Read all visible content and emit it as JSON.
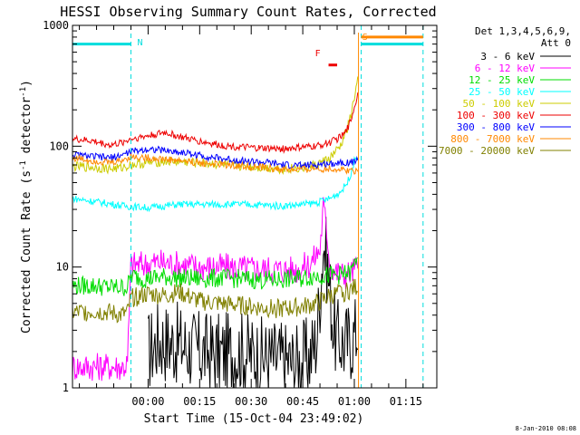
{
  "chart_data": {
    "type": "line",
    "title": "HESSI Observing Summary Count Rates, Corrected",
    "xlabel": "Start Time (15-Oct-04 23:49:02)",
    "ylabel": "Corrected Count Rate (s⁻¹ detector⁻¹)",
    "ylabel_parts": {
      "main": "Corrected Count Rate (s",
      "exp1": "-1",
      "mid": " detector",
      "exp2": "-1",
      "end": ")"
    },
    "x_unit": "minutes since 23:49:02",
    "xlim": [
      -11,
      95
    ],
    "ylim": [
      1,
      1000
    ],
    "y_scale": "log",
    "x_ticks": [
      {
        "value": 11,
        "label": "00:00"
      },
      {
        "value": 26,
        "label": "00:15"
      },
      {
        "value": 41,
        "label": "00:30"
      },
      {
        "value": 56,
        "label": "00:45"
      },
      {
        "value": 71,
        "label": "01:00"
      },
      {
        "value": 86,
        "label": "01:15"
      }
    ],
    "y_ticks": [
      {
        "value": 1,
        "label": "1"
      },
      {
        "value": 10,
        "label": "10"
      },
      {
        "value": 100,
        "label": "100"
      },
      {
        "value": 1000,
        "label": "1000"
      }
    ],
    "legend": {
      "position": "right",
      "header_lines": [
        "Det 1,3,4,5,6,9,",
        "Att 0"
      ],
      "entries": [
        {
          "label": "3 - 6 keV",
          "color": "#000000"
        },
        {
          "label": "6 - 12 keV",
          "color": "#ff00ff"
        },
        {
          "label": "12 - 25 keV",
          "color": "#00dd00"
        },
        {
          "label": "25 - 50 keV",
          "color": "#00ffff"
        },
        {
          "label": "50 - 100 keV",
          "color": "#cccc00"
        },
        {
          "label": "100 - 300 keV",
          "color": "#ee0000"
        },
        {
          "label": "300 - 800 keV",
          "color": "#0000ff"
        },
        {
          "label": "800 - 7000 keV",
          "color": "#ff8800"
        },
        {
          "label": "7000 - 20000 keV",
          "color": "#808000"
        }
      ]
    },
    "annotations": [
      {
        "label": "N",
        "x": 6,
        "color": "#00dddd"
      },
      {
        "label": "S",
        "x": 72,
        "color": "#ff8800"
      },
      {
        "label": "F",
        "x": 63,
        "color": "#ee0000"
      }
    ],
    "night_intervals": [
      [
        -11,
        6
      ],
      [
        73,
        91
      ]
    ],
    "night_level": 700,
    "saa_intervals": [
      [
        73,
        91
      ]
    ],
    "saa_level": 800,
    "flare_intervals": [
      [
        63.5,
        66
      ]
    ],
    "flare_level": 470,
    "series": [
      {
        "name": "3 - 6 keV",
        "color": "#000000",
        "x": [
          11,
          14,
          20,
          26,
          32,
          38,
          44,
          50,
          54,
          58,
          60,
          61,
          62,
          63,
          64,
          65,
          66,
          67,
          68,
          70,
          71,
          72
        ],
        "y": [
          2.0,
          2.5,
          2.3,
          2.0,
          1.9,
          2.0,
          1.8,
          1.7,
          1.6,
          1.8,
          2.5,
          6,
          16,
          11,
          6,
          3,
          2.5,
          2.5,
          2.3,
          2.5,
          2.7,
          3.0
        ]
      },
      {
        "name": "6 - 12 keV",
        "color": "#ff00ff",
        "x": [
          -11,
          0,
          2,
          4,
          5,
          6,
          10,
          14,
          20,
          26,
          32,
          38,
          44,
          50,
          54,
          58,
          61,
          62,
          63,
          64,
          66,
          68,
          70,
          71,
          72
        ],
        "y": [
          1.5,
          1.5,
          1.5,
          1.5,
          1.6,
          10.5,
          10.5,
          11.0,
          10.5,
          10.0,
          10.0,
          9.8,
          9.6,
          9.5,
          9.5,
          10.5,
          14,
          32,
          20,
          10,
          9,
          8.5,
          9.0,
          9.5,
          10.0
        ]
      },
      {
        "name": "12 - 25 keV",
        "color": "#00dd00",
        "x": [
          -11,
          -5,
          0,
          3,
          5,
          6,
          10,
          16,
          20,
          26,
          32,
          38,
          44,
          50,
          56,
          60,
          63,
          66,
          68,
          70,
          71,
          72
        ],
        "y": [
          7.0,
          7.0,
          6.8,
          6.8,
          6.8,
          8.5,
          8.0,
          8.3,
          8.1,
          8.0,
          8.1,
          8.0,
          7.8,
          7.9,
          8.1,
          8.5,
          8.5,
          8.6,
          8.7,
          9.0,
          10.5,
          13.0
        ]
      },
      {
        "name": "25 - 50 keV",
        "color": "#00ffff",
        "x": [
          -11,
          -2,
          4,
          11,
          20,
          30,
          40,
          50,
          56,
          60,
          64,
          67,
          69,
          70,
          71,
          72
        ],
        "y": [
          37,
          34,
          32,
          31,
          33,
          33,
          33,
          32,
          33,
          34,
          37,
          42,
          50,
          60,
          75,
          85
        ]
      },
      {
        "name": "50 - 100 keV",
        "color": "#cccc00",
        "x": [
          -11,
          -5,
          0,
          3,
          6,
          11,
          16,
          22,
          28,
          34,
          40,
          46,
          50,
          56,
          60,
          64,
          67,
          69,
          70,
          71,
          72
        ],
        "y": [
          68,
          67,
          65,
          66,
          70,
          73,
          75,
          74,
          72,
          70,
          68,
          66,
          65,
          66,
          70,
          80,
          100,
          140,
          180,
          250,
          350
        ]
      },
      {
        "name": "100 - 300 keV",
        "color": "#ee0000",
        "x": [
          -11,
          -5,
          0,
          3,
          6,
          11,
          16,
          21,
          26,
          32,
          38,
          44,
          50,
          56,
          60,
          64,
          66,
          68,
          69,
          70,
          71,
          72
        ],
        "y": [
          115,
          110,
          102,
          106,
          115,
          122,
          130,
          118,
          110,
          102,
          98,
          96,
          95,
          98,
          100,
          108,
          115,
          125,
          140,
          165,
          210,
          270
        ]
      },
      {
        "name": "300 - 800 keV",
        "color": "#0000ff",
        "x": [
          -11,
          -5,
          0,
          3,
          6,
          11,
          16,
          22,
          28,
          34,
          40,
          46,
          50,
          56,
          60,
          64,
          68,
          70,
          71,
          72
        ],
        "y": [
          85,
          82,
          80,
          84,
          90,
          95,
          92,
          88,
          82,
          78,
          75,
          73,
          70,
          69,
          70,
          72,
          74,
          73,
          75,
          76
        ]
      },
      {
        "name": "800 - 7000 keV",
        "color": "#ff8800",
        "x": [
          -11,
          -5,
          0,
          3,
          6,
          11,
          16,
          22,
          28,
          34,
          40,
          46,
          50,
          56,
          60,
          64,
          68,
          70,
          71,
          72
        ],
        "y": [
          80,
          76,
          73,
          76,
          82,
          80,
          78,
          75,
          72,
          70,
          68,
          66,
          64,
          64,
          65,
          65,
          64,
          63,
          63,
          63
        ]
      },
      {
        "name": "7000 - 20000 keV",
        "color": "#808000",
        "x": [
          -11,
          -5,
          0,
          3,
          5,
          6,
          11,
          16,
          20,
          26,
          32,
          38,
          44,
          50,
          56,
          60,
          64,
          68,
          70,
          72
        ],
        "y": [
          4.2,
          4.3,
          4.2,
          4.0,
          4.2,
          5.5,
          6.0,
          5.8,
          6.2,
          5.2,
          5.0,
          4.8,
          4.6,
          4.5,
          4.7,
          5.0,
          5.8,
          6.2,
          6.5,
          7.0
        ]
      }
    ]
  },
  "footer_date": "8-Jan-2010 08:08"
}
